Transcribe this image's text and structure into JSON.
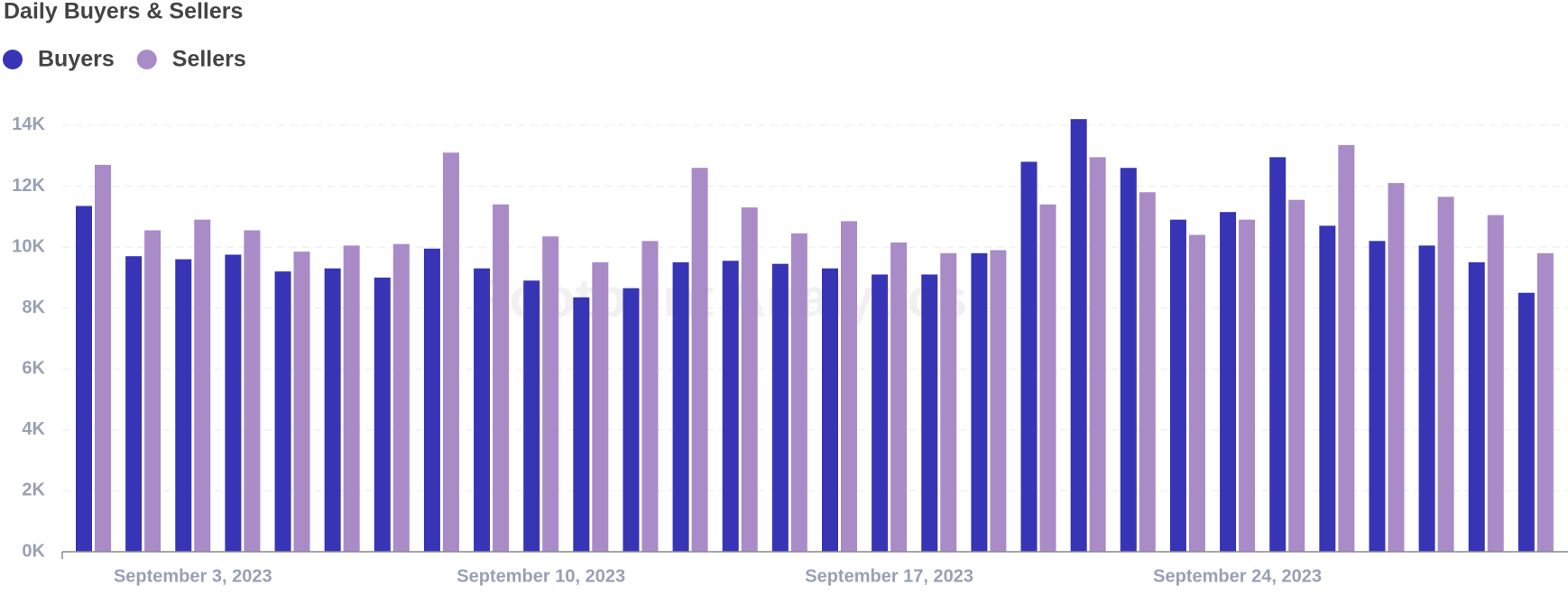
{
  "chart_data": {
    "type": "bar",
    "title": "Daily Buyers & Sellers",
    "watermark": "Footprint Analytics",
    "categories": [
      null,
      null,
      "September 3, 2023",
      null,
      null,
      null,
      null,
      null,
      null,
      "September 10, 2023",
      null,
      null,
      null,
      null,
      null,
      null,
      "September 17, 2023",
      null,
      null,
      null,
      null,
      null,
      null,
      "September 24, 2023",
      null,
      null,
      null,
      null,
      null,
      null
    ],
    "series": [
      {
        "name": "Buyers",
        "color": "#3734b6",
        "values": [
          11350,
          9700,
          9600,
          9750,
          9200,
          9300,
          9000,
          9950,
          9300,
          8900,
          8350,
          8650,
          9500,
          9550,
          9450,
          9300,
          9100,
          9100,
          9800,
          12800,
          14200,
          12600,
          10900,
          11150,
          12950,
          10700,
          10200,
          10050,
          9500,
          8500
        ]
      },
      {
        "name": "Sellers",
        "color": "#a98bc8",
        "values": [
          12700,
          10550,
          10900,
          10550,
          9850,
          10050,
          10100,
          13100,
          11400,
          10350,
          9500,
          10200,
          12600,
          11300,
          10450,
          10850,
          10150,
          9800,
          9900,
          11400,
          12950,
          11800,
          10400,
          10900,
          11550,
          13350,
          12100,
          11650,
          11050,
          9800
        ]
      }
    ],
    "ylim": [
      0,
      14500
    ],
    "yticks": [
      {
        "value": 0,
        "label": "0K"
      },
      {
        "value": 2000,
        "label": "2K"
      },
      {
        "value": 4000,
        "label": "4K"
      },
      {
        "value": 6000,
        "label": "6K"
      },
      {
        "value": 8000,
        "label": "8K"
      },
      {
        "value": 10000,
        "label": "10K"
      },
      {
        "value": 12000,
        "label": "12K"
      },
      {
        "value": 14000,
        "label": "14K"
      }
    ],
    "grid": true,
    "legend": "top-left"
  }
}
